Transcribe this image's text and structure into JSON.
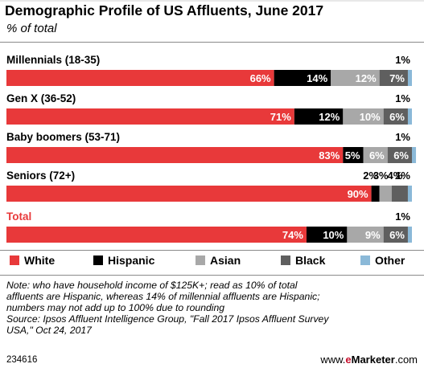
{
  "header": {
    "title": "Demographic Profile of US Affluents, June 2017",
    "subtitle": "% of total"
  },
  "colors": {
    "White": "#e8393a",
    "Hispanic": "#000000",
    "Asian": "#a8a8a8",
    "Black": "#5f5f5f",
    "Other": "#8bb9d8",
    "total_label": "#e8393a",
    "title_accent": "#c8102e"
  },
  "chart_data": {
    "type": "bar",
    "orientation": "horizontal",
    "stacked": true,
    "title": "Demographic Profile of US Affluents, June 2017",
    "subtitle": "% of total",
    "xlim": [
      0,
      100
    ],
    "legend_position": "bottom",
    "categories": [
      "Millennials (18-35)",
      "Gen X (36-52)",
      "Baby boomers (53-71)",
      "Seniors (72+)",
      "Total"
    ],
    "series": [
      {
        "name": "White",
        "values": [
          66,
          71,
          83,
          90,
          74
        ]
      },
      {
        "name": "Hispanic",
        "values": [
          14,
          12,
          5,
          2,
          10
        ]
      },
      {
        "name": "Asian",
        "values": [
          12,
          10,
          6,
          3,
          9
        ]
      },
      {
        "name": "Black",
        "values": [
          7,
          6,
          6,
          4,
          6
        ]
      },
      {
        "name": "Other",
        "values": [
          1,
          1,
          1,
          1,
          1
        ]
      }
    ]
  },
  "legend": {
    "items": [
      "White",
      "Hispanic",
      "Asian",
      "Black",
      "Other"
    ]
  },
  "footnote": {
    "lines": [
      "Note: who have household income of $125K+; read as 10% of total",
      "affluents are Hispanic, whereas 14% of millennial affluents are Hispanic;",
      "numbers may not add up to 100% due to rounding",
      "Source: Ipsos Affluent Intelligence Group, \"Fall 2017 Ipsos Affluent Survey",
      "USA,\" Oct 24, 2017"
    ]
  },
  "footer": {
    "chart_id": "234616",
    "brand_prefix": "www.",
    "brand_e": "e",
    "brand_main": "Marketer",
    "brand_suffix": ".com"
  }
}
